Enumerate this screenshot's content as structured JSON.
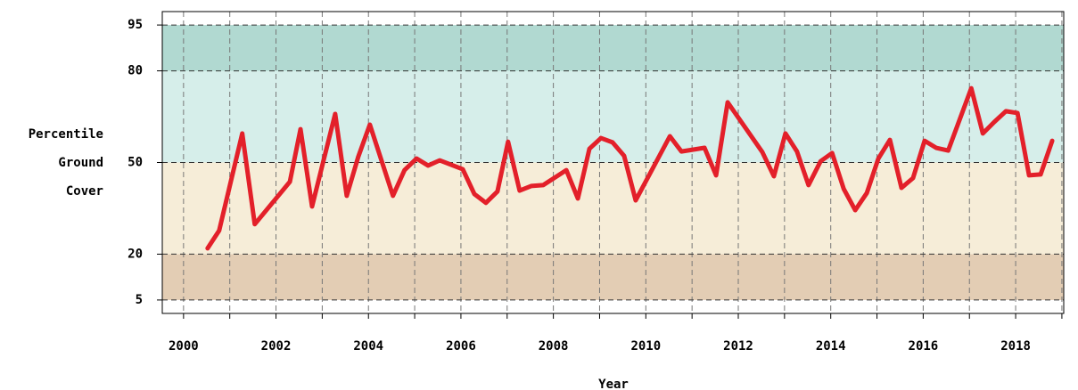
{
  "chart_data": {
    "type": "line",
    "xlabel": "Year",
    "ylabel": [
      "Percentile",
      "Ground",
      "Cover"
    ],
    "xlim": [
      1999.54,
      2019.04
    ],
    "ylim": [
      0.6,
      99.4
    ],
    "xticks": [
      2000,
      2002,
      2004,
      2006,
      2008,
      2010,
      2012,
      2014,
      2016,
      2018
    ],
    "xminor_ticks": [
      2001,
      2003,
      2005,
      2007,
      2009,
      2011,
      2013,
      2015,
      2017,
      2019
    ],
    "yticks": [
      5,
      20,
      50,
      80,
      95
    ],
    "grid": true,
    "bands": [
      {
        "range": [
          5,
          20
        ],
        "color": "#e3cdb4"
      },
      {
        "range": [
          20,
          50
        ],
        "color": "#f6edd8"
      },
      {
        "range": [
          50,
          80
        ],
        "color": "#d6eeea"
      },
      {
        "range": [
          80,
          95
        ],
        "color": "#b1d9d1"
      }
    ],
    "series": [
      {
        "color": "#e3202a",
        "x": [
          2000.52,
          2000.77,
          2001.27,
          2001.54,
          2002.3,
          2002.53,
          2002.78,
          2003.28,
          2003.53,
          2003.78,
          2004.03,
          2004.53,
          2004.78,
          2005.04,
          2005.29,
          2005.54,
          2006.04,
          2006.29,
          2006.54,
          2006.79,
          2007.02,
          2007.27,
          2007.52,
          2007.78,
          2008.28,
          2008.53,
          2008.78,
          2009.03,
          2009.28,
          2009.53,
          2009.78,
          2010.52,
          2010.77,
          2011.27,
          2011.52,
          2011.77,
          2012.52,
          2012.77,
          2013.02,
          2013.27,
          2013.52,
          2013.78,
          2014.03,
          2014.28,
          2014.53,
          2014.78,
          2015.03,
          2015.28,
          2015.53,
          2015.78,
          2016.03,
          2016.28,
          2016.54,
          2017.04,
          2017.29,
          2017.54,
          2017.79,
          2018.04,
          2018.29,
          2018.54,
          2018.79
        ],
        "values": [
          21.9,
          27.7,
          59.5,
          29.8,
          43.7,
          60.9,
          35.6,
          65.9,
          39.1,
          51.9,
          62.4,
          39.1,
          47.5,
          51.3,
          49.0,
          50.7,
          47.8,
          39.7,
          36.8,
          40.5,
          56.8,
          40.8,
          42.3,
          42.6,
          47.5,
          38.2,
          54.5,
          58.0,
          56.6,
          52.2,
          37.6,
          58.6,
          53.6,
          54.8,
          45.8,
          69.7,
          53.4,
          45.5,
          59.5,
          53.6,
          42.6,
          50.4,
          53.1,
          41.4,
          34.4,
          40.0,
          51.3,
          57.4,
          41.7,
          44.9,
          57.1,
          54.8,
          53.9,
          74.3,
          59.5,
          63.3,
          66.8,
          66.2,
          45.8,
          46.1,
          57.1
        ]
      }
    ]
  }
}
